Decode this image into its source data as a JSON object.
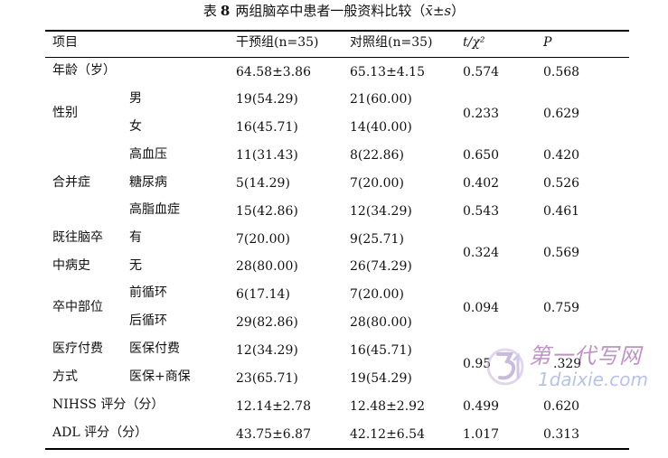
{
  "title": {
    "prefix": "表",
    "number": "8",
    "text": "两组脑卒中患者一般资料比较（",
    "mean_symbol": "x̄",
    "sd": "±s",
    "close": "）"
  },
  "table": {
    "headers": {
      "item": "项目",
      "intervention": "干预组(n=35)",
      "control": "对照组(n=35)",
      "stat": "t/χ²",
      "p": "P"
    },
    "rows": {
      "age": {
        "label": "年龄（岁）",
        "intervention": "64.58±3.86",
        "control": "65.13±4.15",
        "stat": "0.574",
        "p": "0.568"
      },
      "sex": {
        "label": "性别",
        "male": {
          "label": "男",
          "intervention": "19(54.29)",
          "control": "21(60.00)"
        },
        "female": {
          "label": "女",
          "intervention": "16(45.71)",
          "control": "14(40.00)"
        },
        "stat": "0.233",
        "p": "0.629"
      },
      "comorbidity": {
        "label": "合并症",
        "hypertension": {
          "label": "高血压",
          "intervention": "11(31.43)",
          "control": "8(22.86)",
          "stat": "0.650",
          "p": "0.420"
        },
        "diabetes": {
          "label": "糖尿病",
          "intervention": "5(14.29)",
          "control": "7(20.00)",
          "stat": "0.402",
          "p": "0.526"
        },
        "hyperlipidemia": {
          "label": "高脂血症",
          "intervention": "15(42.86)",
          "control": "12(34.29)",
          "stat": "0.543",
          "p": "0.461"
        }
      },
      "history": {
        "label_line1": "既往脑卒",
        "label_line2": "中病史",
        "yes": {
          "label": "有",
          "intervention": "7(20.00)",
          "control": "9(25.71)"
        },
        "no": {
          "label": "无",
          "intervention": "28(80.00)",
          "control": "26(74.29)"
        },
        "stat": "0.324",
        "p": "0.569"
      },
      "site": {
        "label": "卒中部位",
        "anterior": {
          "label": "前循环",
          "intervention": "6(17.14)",
          "control": "7(20.00)"
        },
        "posterior": {
          "label": "后循环",
          "intervention": "29(82.86)",
          "control": "28(80.00)"
        },
        "stat": "0.094",
        "p": "0.759"
      },
      "payment": {
        "label_line1": "医疗付费",
        "label_line2": "方式",
        "insurance": {
          "label": "医保付费",
          "intervention": "12(34.29)",
          "control": "16(45.71)"
        },
        "mixed": {
          "label": "医保+商保",
          "intervention": "23(65.71)",
          "control": "19(54.29)"
        },
        "stat": "0.95",
        "p": ".329"
      },
      "nihss": {
        "label": "NIHSS 评分（分）",
        "intervention": "12.14±2.78",
        "control": "12.48±2.92",
        "stat": "0.499",
        "p": "0.620"
      },
      "adl": {
        "label": "ADL 评分（分）",
        "intervention": "43.75±6.87",
        "control": "42.12±6.54",
        "stat": "1.017",
        "p": "0.313"
      }
    }
  },
  "watermark": {
    "chinese": "第一代写网",
    "english": "1daixie.com",
    "logo_icon": "watermark-logo-icon"
  }
}
